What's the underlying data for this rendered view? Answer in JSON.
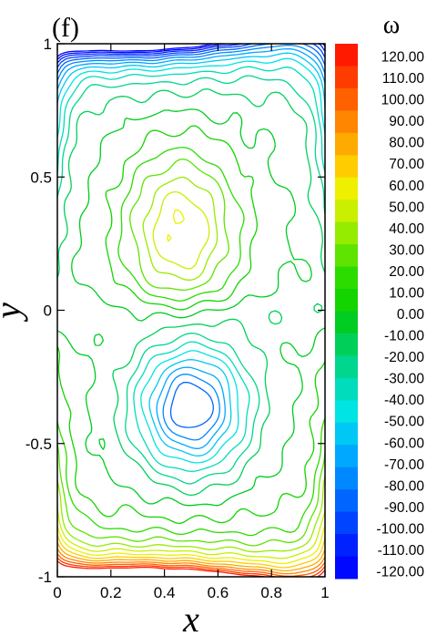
{
  "panel_label": "(f)",
  "chart_data": {
    "type": "contour",
    "xlabel": "x",
    "ylabel": "y",
    "xlim": [
      0,
      1
    ],
    "ylim": [
      -1,
      1
    ],
    "x_ticks": [
      "0",
      "0.2",
      "0.4",
      "0.6",
      "0.8",
      "1"
    ],
    "x_tick_values": [
      0,
      0.2,
      0.4,
      0.6,
      0.8,
      1
    ],
    "y_ticks": [
      "1",
      "0.5",
      "0",
      "-0.5",
      "-1"
    ],
    "y_tick_values": [
      1,
      0.5,
      0,
      -0.5,
      -1
    ],
    "colorbar": {
      "title": "ω",
      "min": -120,
      "max": 120,
      "step": 10,
      "labels": [
        "120.00",
        "110.00",
        "100.00",
        "90.00",
        "80.00",
        "70.00",
        "60.00",
        "50.00",
        "40.00",
        "30.00",
        "20.00",
        "10.00",
        "0.00",
        "-10.00",
        "-20.00",
        "-30.00",
        "-40.00",
        "-50.00",
        "-60.00",
        "-70.00",
        "-80.00",
        "-90.00",
        "-100.00",
        "-110.00",
        "-120.00"
      ],
      "colors": [
        "#ff1a00",
        "#ff3c00",
        "#ff6000",
        "#ff8600",
        "#ffaa00",
        "#ffcc00",
        "#eef000",
        "#c8f000",
        "#96ec00",
        "#5ee400",
        "#2cdc00",
        "#14d400",
        "#00cc22",
        "#00d05a",
        "#00d68e",
        "#00dcbc",
        "#00e4e4",
        "#00c8f4",
        "#00a8ff",
        "#0088ff",
        "#0066ff",
        "#0044ff",
        "#0022ff",
        "#0008ff"
      ]
    },
    "contour_levels": [
      -120,
      -110,
      -100,
      -90,
      -80,
      -70,
      -60,
      -50,
      -40,
      -30,
      -20,
      -10,
      0,
      10,
      20,
      30,
      40,
      50,
      60,
      70,
      80,
      90,
      100,
      110,
      120
    ],
    "features": [
      {
        "type": "vortex",
        "sign": "positive",
        "center": [
          0.45,
          0.3
        ],
        "peak": 60
      },
      {
        "type": "vortex",
        "sign": "negative",
        "center": [
          0.5,
          -0.35
        ],
        "peak": -90
      },
      {
        "type": "boundary_layer",
        "edge": "top",
        "sign": "negative",
        "peak": -120
      },
      {
        "type": "boundary_layer",
        "edge": "bottom",
        "sign": "positive",
        "peak": 120
      }
    ]
  }
}
